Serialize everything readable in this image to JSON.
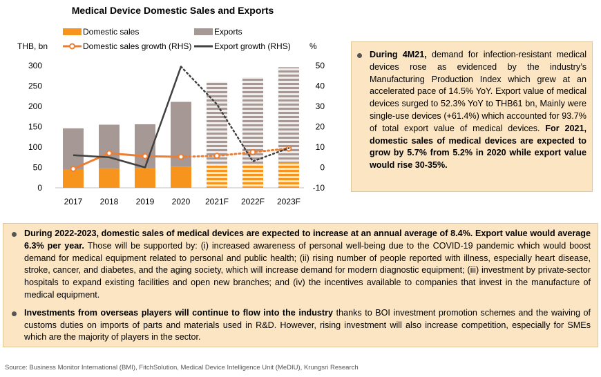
{
  "chart_data": {
    "type": "bar",
    "title": "Medical Device Domestic Sales and Exports",
    "categories": [
      "2017",
      "2018",
      "2019",
      "2020",
      "2021F",
      "2022F",
      "2023F"
    ],
    "forecast_categories": [
      "2021F",
      "2022F",
      "2023F"
    ],
    "left_axis": {
      "unit_label": "THB, bn",
      "ylim": [
        0,
        300
      ],
      "ticks": [
        "0",
        "50",
        "100",
        "150",
        "200",
        "250",
        "300"
      ]
    },
    "right_axis": {
      "unit_label": "%",
      "ylim": [
        -10,
        50
      ],
      "ticks": [
        "-10",
        "0",
        "10",
        "20",
        "30",
        "40",
        "50"
      ]
    },
    "stacked_bars": [
      {
        "name": "Domestic sales",
        "color": "#f7941d",
        "values": [
          45,
          47,
          48,
          52,
          55,
          58,
          63
        ]
      },
      {
        "name": "Exports",
        "color": "#a69894",
        "values": [
          101,
          108,
          108,
          159,
          205,
          213,
          233
        ]
      }
    ],
    "lines": [
      {
        "name": "Domestic sales growth (RHS)",
        "color": "#ed7d31",
        "marker": "circle",
        "values": [
          -0.7,
          7,
          5.5,
          5.2,
          5.7,
          7.5,
          9.3
        ]
      },
      {
        "name": "Export growth (RHS)",
        "color": "#404040",
        "marker": "none",
        "values": [
          6,
          5,
          0,
          49.5,
          31,
          3,
          9.5
        ]
      }
    ],
    "grid": false,
    "legend_position": "top"
  },
  "side_note": {
    "lead_bold": "During 4M21,",
    "text": " demand for infection-resistant medical devices rose as evidenced by the industry’s Manufacturing Production Index which grew at an accelerated pace of 14.5% YoY. Export value of medical devices surged to 52.3% YoY to THB61 bn, Mainly were single-use devices (+61.4%) which accounted for 93.7% of total export value of medical devices. ",
    "tail_bold": "For 2021, domestic sales of medical devices are expected to grow by 5.7% from 5.2% in 2020 while export value would rise 30-35%."
  },
  "bottom_notes": [
    {
      "bold": "During 2022-2023, domestic sales of medical devices are expected to increase at an annual average of 8.4%. Export value would average 6.3% per year.",
      "text": " Those will be supported by: (i) increased awareness of personal well-being due to the COVID-19 pandemic  which would boost demand for medical equipment related to personal and public health; (ii) rising number of people reported with illness, especially heart disease, stroke, cancer, and diabetes, and the aging society, which will increase demand for modern diagnostic equipment; (iii) investment by private-sector hospitals to expand existing facilities and open new branches; and (iv) the incentives available to companies that invest in the manufacture of medical equipment."
    },
    {
      "bold": "Investments from overseas players will continue to flow into the industry",
      "text": " thanks to BOI investment promotion schemes and the waiving of customs duties on imports of parts and materials used in R&D. However, rising investment will also increase competition, especially for SMEs which are the majority of players in the sector."
    }
  ],
  "source": "Source: Business Monitor International (BMI), FitchSolution, Medical Device Intelligence Unit (MeDIU), Krungsri Research"
}
